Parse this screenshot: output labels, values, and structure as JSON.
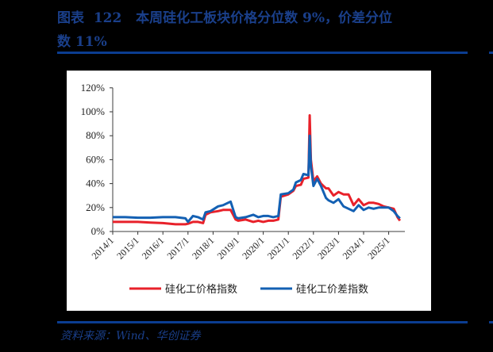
{
  "header": {
    "title_line1": "图表  122   本周硅化工板块价格分位数 9%，价差分位",
    "title_line2": "数 11%"
  },
  "footer": {
    "source": "资料来源：Wind、华创证券"
  },
  "colors": {
    "title": "#1a3f8a",
    "rule": "#0b3d91",
    "price_series": "#e8212a",
    "spread_series": "#1360b3"
  },
  "chart_data": {
    "type": "line",
    "title": "本周硅化工板块价格分位数 9%，价差分位数 11%",
    "xlabel": "",
    "ylabel": "",
    "ylim": [
      0,
      120
    ],
    "y_ticks": [
      "0%",
      "20%",
      "40%",
      "60%",
      "80%",
      "100%",
      "120%"
    ],
    "x_ticks": [
      "2014/1",
      "2015/1",
      "2016/1",
      "2017/1",
      "2018/1",
      "2019/1",
      "2020/1",
      "2021/1",
      "2022/1",
      "2023/1",
      "2024/1",
      "2025/1"
    ],
    "legend_position": "bottom",
    "grid": false,
    "x": [
      2014.0,
      2014.5,
      2015.0,
      2015.5,
      2016.0,
      2016.5,
      2016.9,
      2017.0,
      2017.2,
      2017.4,
      2017.6,
      2017.7,
      2017.9,
      2018.2,
      2018.4,
      2018.7,
      2018.9,
      2019.0,
      2019.3,
      2019.6,
      2019.8,
      2020.0,
      2020.2,
      2020.4,
      2020.6,
      2020.7,
      2021.0,
      2021.2,
      2021.3,
      2021.5,
      2021.6,
      2021.8,
      2021.85,
      2021.9,
      2022.0,
      2022.15,
      2022.3,
      2022.5,
      2022.6,
      2022.8,
      2023.0,
      2023.2,
      2023.4,
      2023.6,
      2023.8,
      2024.0,
      2024.2,
      2024.4,
      2024.6,
      2024.8,
      2025.0,
      2025.2,
      2025.35,
      2025.45
    ],
    "series": [
      {
        "name": "硅化工价格指数",
        "values": [
          8,
          8,
          8,
          7.5,
          7,
          6,
          6,
          6.5,
          8,
          8,
          7,
          14,
          16,
          17,
          18,
          18,
          10,
          9,
          10,
          8,
          9,
          8,
          9,
          9,
          10,
          29,
          31,
          34,
          38,
          39,
          44,
          45,
          97,
          60,
          42,
          46,
          40,
          36,
          36,
          30,
          33,
          31,
          31,
          22,
          27,
          22,
          24,
          24,
          23,
          21,
          20,
          19,
          12,
          9
        ]
      },
      {
        "name": "硅化工价差指数",
        "values": [
          12,
          12,
          11.5,
          11.5,
          12,
          12,
          11,
          8,
          13,
          12,
          10,
          16,
          17,
          21,
          22,
          25,
          12,
          11,
          12,
          14,
          12,
          13,
          13,
          12,
          13,
          31,
          32,
          35,
          41,
          43,
          48,
          47,
          80,
          55,
          38,
          44,
          38,
          28,
          26,
          24,
          27,
          21,
          19,
          17,
          22,
          18,
          20,
          19,
          20,
          20,
          20,
          17,
          13,
          11
        ]
      }
    ]
  }
}
